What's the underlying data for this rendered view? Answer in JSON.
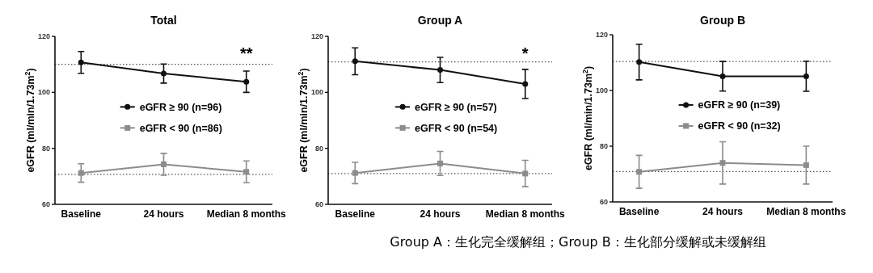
{
  "chart_data": [
    {
      "type": "line",
      "title": "Total",
      "ylabel": "eGFR (ml/min/1.73m$^{2}$)",
      "categories": [
        "Baseline",
        "24 hours",
        "Median 8 months"
      ],
      "ylim": [
        60,
        120
      ],
      "yticks": [
        60,
        80,
        100,
        120
      ],
      "legend": "center",
      "series": [
        {
          "name": "eGFR ≥ 90 (n=96)",
          "color": "#111111",
          "marker": "circle",
          "values": [
            110.7,
            106.7,
            103.8
          ],
          "errors": [
            3.9,
            3.4,
            3.8
          ]
        },
        {
          "name": "eGFR < 90 (n=86)",
          "color": "#8c8c8c",
          "marker": "square",
          "values": [
            71.2,
            74.3,
            71.6
          ],
          "errors": [
            3.3,
            3.9,
            3.9
          ]
        }
      ],
      "ref_lines": [
        {
          "axis": "y",
          "value": 110,
          "line_style": "dotted"
        },
        {
          "axis": "y",
          "value": 70.7,
          "line_style": "dotted"
        }
      ],
      "annotations": [
        "**"
      ]
    },
    {
      "type": "line",
      "title": "Group A",
      "ylabel": "eGFR (ml/min/1.73m$^{2}$)",
      "categories": [
        "Baseline",
        "24 hours",
        "Median 8 months"
      ],
      "ylim": [
        60,
        120
      ],
      "yticks": [
        60,
        80,
        100,
        120
      ],
      "legend": "center",
      "series": [
        {
          "name": "eGFR ≥ 90 (n=57)",
          "color": "#111111",
          "marker": "circle",
          "values": [
            111.1,
            108,
            103
          ],
          "errors": [
            4.8,
            4.5,
            5.2
          ]
        },
        {
          "name": "eGFR < 90 (n=54)",
          "color": "#8c8c8c",
          "marker": "square",
          "values": [
            71.2,
            74.6,
            71
          ],
          "errors": [
            3.8,
            4.3,
            4.7
          ]
        }
      ],
      "ref_lines": [
        {
          "axis": "y",
          "value": 110.9,
          "line_style": "dotted"
        },
        {
          "axis": "y",
          "value": 71,
          "line_style": "dotted"
        }
      ],
      "annotations": [
        "*"
      ]
    },
    {
      "type": "line",
      "title": "Group B",
      "ylabel": "eGFR (ml/min/1.73m$^{2}$)",
      "categories": [
        "Baseline",
        "24 hours",
        "Median 8 months"
      ],
      "ylim": [
        60,
        120
      ],
      "yticks": [
        60,
        80,
        100,
        120
      ],
      "legend": "center",
      "series": [
        {
          "name": "eGFR ≥ 90 (n=39)",
          "color": "#111111",
          "marker": "circle",
          "values": [
            110.2,
            105.1,
            105.1
          ],
          "errors": [
            6.4,
            5.3,
            5.4
          ]
        },
        {
          "name": "eGFR < 90 (n=32)",
          "color": "#8c8c8c",
          "marker": "square",
          "values": [
            70.8,
            74,
            73.2
          ],
          "errors": [
            5.9,
            7.6,
            6.8
          ]
        }
      ],
      "ref_lines": [
        {
          "axis": "y",
          "value": 110.4,
          "line_style": "dotted"
        },
        {
          "axis": "y",
          "value": 70.9,
          "line_style": "dotted"
        }
      ]
    },
    {
      "type": "other",
      "annotations": [
        "Group A：生化完全缓解组；Group B：生化部分缓解或未缓解组"
      ]
    }
  ]
}
